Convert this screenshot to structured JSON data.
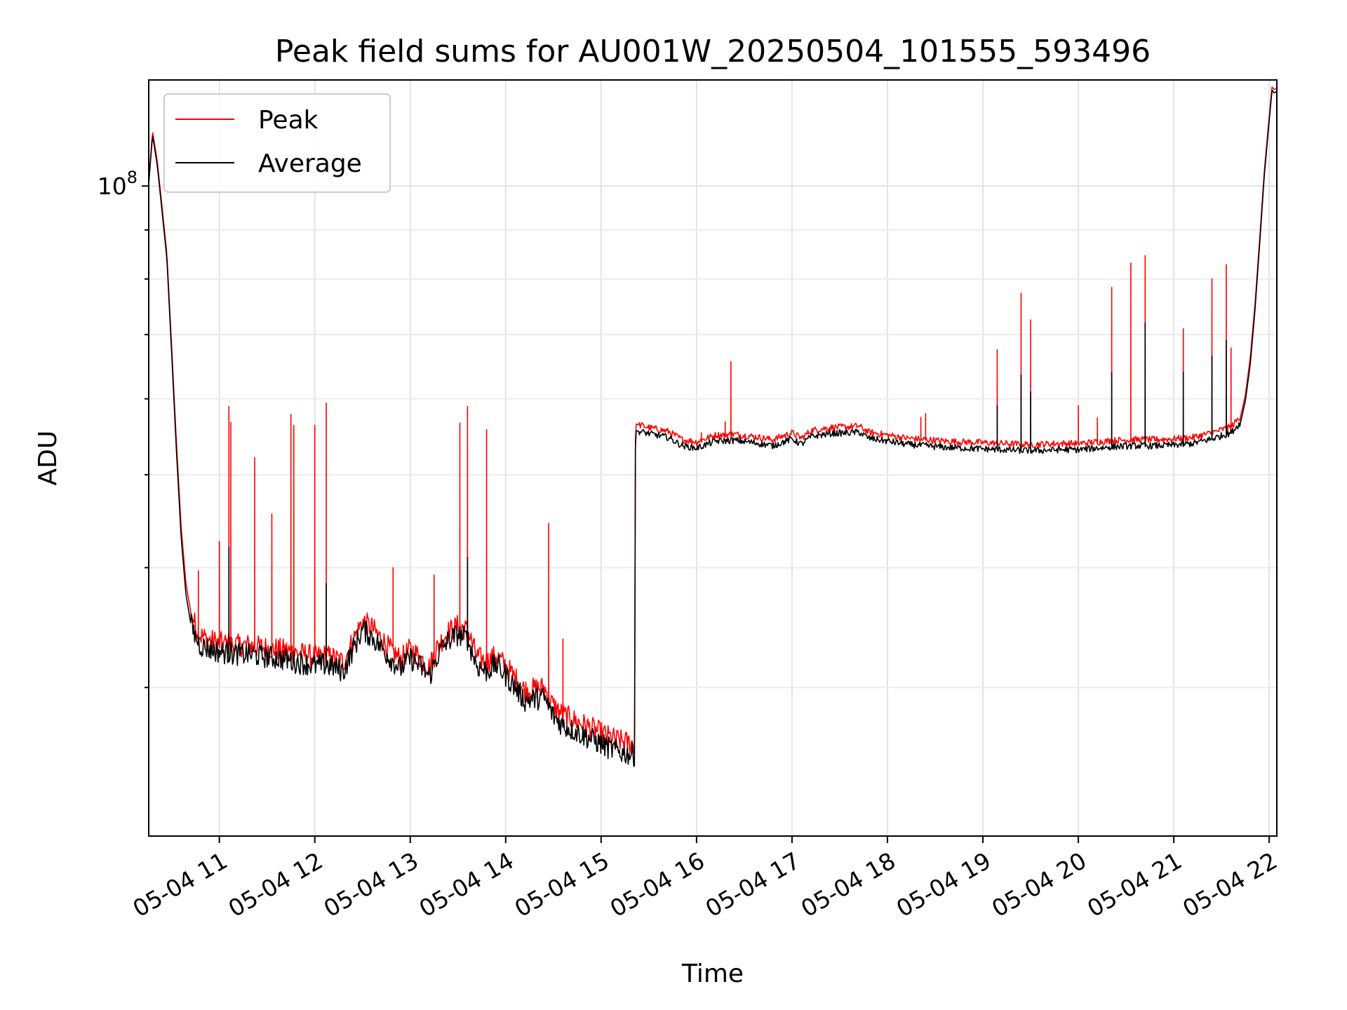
{
  "chart_data": {
    "type": "line",
    "title": "Peak field sums for AU001W_20250504_101555_593496",
    "xlabel": "Time",
    "ylabel": "ADU",
    "x_range_hours": [
      10.26,
      22.08
    ],
    "y_scale": "log",
    "y_range": [
      21000000,
      129000000
    ],
    "x_ticks": [
      {
        "value": 11,
        "label": "05-04 11"
      },
      {
        "value": 12,
        "label": "05-04 12"
      },
      {
        "value": 13,
        "label": "05-04 13"
      },
      {
        "value": 14,
        "label": "05-04 14"
      },
      {
        "value": 15,
        "label": "05-04 15"
      },
      {
        "value": 16,
        "label": "05-04 16"
      },
      {
        "value": 17,
        "label": "05-04 17"
      },
      {
        "value": 18,
        "label": "05-04 18"
      },
      {
        "value": 19,
        "label": "05-04 19"
      },
      {
        "value": 20,
        "label": "05-04 20"
      },
      {
        "value": 21,
        "label": "05-04 21"
      },
      {
        "value": 22,
        "label": "05-04 22"
      }
    ],
    "y_major_ticks": [
      {
        "value": 100000000,
        "base": "10",
        "exp": "8"
      }
    ],
    "y_minor_ticks": [
      30000000,
      40000000,
      50000000,
      60000000,
      70000000,
      80000000,
      90000000
    ],
    "grid": true,
    "legend_position": "top-left",
    "series": [
      {
        "name": "Peak",
        "color": "#ff0000",
        "points": [
          [
            10.26,
            101000000
          ],
          [
            10.3,
            114000000
          ],
          [
            10.35,
            106000000
          ],
          [
            10.4,
            95000000
          ],
          [
            10.45,
            85000000
          ],
          [
            10.5,
            68000000
          ],
          [
            10.55,
            54000000
          ],
          [
            10.6,
            44000000
          ],
          [
            10.65,
            38500000
          ],
          [
            10.7,
            36000000
          ],
          [
            10.75,
            34800000
          ],
          [
            10.8,
            34000000
          ],
          [
            10.9,
            33600000
          ],
          [
            11.0,
            33400000
          ],
          [
            11.1,
            33300000
          ],
          [
            11.2,
            33200000
          ],
          [
            11.3,
            33200000
          ],
          [
            11.4,
            33100000
          ],
          [
            11.5,
            33000000
          ],
          [
            11.6,
            32900000
          ],
          [
            11.7,
            32800000
          ],
          [
            11.8,
            32600000
          ],
          [
            11.9,
            32500000
          ],
          [
            12.0,
            32300000
          ],
          [
            12.1,
            32400000
          ],
          [
            12.2,
            32200000
          ],
          [
            12.3,
            31900000
          ],
          [
            12.4,
            33600000
          ],
          [
            12.5,
            35200000
          ],
          [
            12.6,
            34600000
          ],
          [
            12.7,
            33700000
          ],
          [
            12.8,
            32800000
          ],
          [
            12.9,
            32100000
          ],
          [
            13.0,
            32900000
          ],
          [
            13.1,
            32300000
          ],
          [
            13.2,
            31500000
          ],
          [
            13.3,
            33300000
          ],
          [
            13.4,
            34300000
          ],
          [
            13.5,
            34800000
          ],
          [
            13.6,
            34400000
          ],
          [
            13.7,
            32300000
          ],
          [
            13.8,
            31900000
          ],
          [
            13.9,
            32400000
          ],
          [
            14.0,
            31600000
          ],
          [
            14.1,
            30700000
          ],
          [
            14.2,
            29800000
          ],
          [
            14.3,
            29900000
          ],
          [
            14.4,
            30000000
          ],
          [
            14.5,
            28700000
          ],
          [
            14.6,
            28100000
          ],
          [
            14.7,
            27800000
          ],
          [
            14.8,
            27500000
          ],
          [
            14.9,
            27200000
          ],
          [
            15.0,
            26900000
          ],
          [
            15.1,
            26600000
          ],
          [
            15.2,
            26400000
          ],
          [
            15.35,
            26200000
          ],
          [
            15.36,
            56500000
          ],
          [
            15.5,
            56000000
          ],
          [
            15.7,
            55500000
          ],
          [
            15.85,
            54400000
          ],
          [
            16.0,
            54100000
          ],
          [
            16.2,
            55000000
          ],
          [
            16.4,
            55100000
          ],
          [
            16.6,
            54800000
          ],
          [
            16.8,
            54400000
          ],
          [
            17.0,
            55300000
          ],
          [
            17.1,
            54600000
          ],
          [
            17.2,
            55600000
          ],
          [
            17.4,
            56000000
          ],
          [
            17.6,
            56100000
          ],
          [
            17.7,
            56200000
          ],
          [
            17.8,
            55400000
          ],
          [
            18.0,
            55000000
          ],
          [
            18.2,
            54600000
          ],
          [
            18.4,
            54400000
          ],
          [
            18.6,
            54200000
          ],
          [
            18.8,
            54100000
          ],
          [
            19.0,
            54000000
          ],
          [
            19.2,
            53900000
          ],
          [
            19.4,
            53800000
          ],
          [
            19.6,
            53800000
          ],
          [
            19.8,
            53900000
          ],
          [
            20.0,
            53900000
          ],
          [
            20.2,
            54100000
          ],
          [
            20.4,
            54300000
          ],
          [
            20.6,
            54400000
          ],
          [
            20.8,
            54400000
          ],
          [
            21.0,
            54500000
          ],
          [
            21.2,
            54700000
          ],
          [
            21.4,
            55300000
          ],
          [
            21.6,
            56100000
          ],
          [
            21.7,
            57500000
          ],
          [
            21.75,
            60500000
          ],
          [
            21.8,
            66000000
          ],
          [
            21.85,
            75000000
          ],
          [
            21.9,
            88000000
          ],
          [
            21.95,
            104000000
          ],
          [
            22.0,
            118000000
          ],
          [
            22.03,
            127000000
          ],
          [
            22.05,
            126000000
          ],
          [
            22.08,
            126500000
          ]
        ],
        "spikes": [
          [
            10.78,
            39700000
          ],
          [
            11.0,
            42600000
          ],
          [
            11.1,
            58900000
          ],
          [
            11.12,
            56700000
          ],
          [
            11.37,
            52100000
          ],
          [
            11.55,
            45500000
          ],
          [
            11.75,
            57800000
          ],
          [
            11.78,
            56300000
          ],
          [
            12.0,
            56300000
          ],
          [
            12.12,
            59400000
          ],
          [
            12.82,
            40000000
          ],
          [
            13.25,
            39300000
          ],
          [
            13.52,
            56600000
          ],
          [
            13.6,
            58900000
          ],
          [
            13.8,
            55700000
          ],
          [
            14.45,
            44500000
          ],
          [
            14.6,
            33700000
          ],
          [
            16.05,
            55300000
          ],
          [
            16.3,
            56800000
          ],
          [
            16.36,
            65600000
          ],
          [
            18.35,
            57400000
          ],
          [
            18.4,
            57900000
          ],
          [
            19.15,
            67500000
          ],
          [
            19.4,
            77300000
          ],
          [
            19.5,
            72500000
          ],
          [
            20.0,
            59000000
          ],
          [
            20.2,
            57300000
          ],
          [
            20.35,
            78400000
          ],
          [
            20.55,
            83100000
          ],
          [
            20.7,
            84600000
          ],
          [
            20.8,
            54300000
          ],
          [
            21.1,
            71000000
          ],
          [
            21.4,
            80000000
          ],
          [
            21.55,
            82800000
          ],
          [
            21.6,
            67800000
          ]
        ]
      },
      {
        "name": "Average",
        "color": "#000000",
        "points": [
          [
            10.26,
            100500000
          ],
          [
            10.3,
            113000000
          ],
          [
            10.35,
            105000000
          ],
          [
            10.4,
            94000000
          ],
          [
            10.45,
            84000000
          ],
          [
            10.5,
            67000000
          ],
          [
            10.55,
            53000000
          ],
          [
            10.6,
            43000000
          ],
          [
            10.65,
            37500000
          ],
          [
            10.7,
            35000000
          ],
          [
            10.75,
            33900000
          ],
          [
            10.8,
            33200000
          ],
          [
            10.9,
            32900000
          ],
          [
            11.0,
            32700000
          ],
          [
            11.1,
            32600000
          ],
          [
            11.2,
            32500000
          ],
          [
            11.3,
            32500000
          ],
          [
            11.4,
            32400000
          ],
          [
            11.5,
            32300000
          ],
          [
            11.6,
            32200000
          ],
          [
            11.7,
            32100000
          ],
          [
            11.8,
            31900000
          ],
          [
            11.9,
            31800000
          ],
          [
            12.0,
            31600000
          ],
          [
            12.1,
            31700000
          ],
          [
            12.2,
            31500000
          ],
          [
            12.3,
            31200000
          ],
          [
            12.4,
            32900000
          ],
          [
            12.5,
            34500000
          ],
          [
            12.6,
            33900000
          ],
          [
            12.7,
            33000000
          ],
          [
            12.8,
            32100000
          ],
          [
            12.9,
            31400000
          ],
          [
            13.0,
            32200000
          ],
          [
            13.1,
            31600000
          ],
          [
            13.2,
            30800000
          ],
          [
            13.3,
            32600000
          ],
          [
            13.4,
            33600000
          ],
          [
            13.5,
            34100000
          ],
          [
            13.6,
            33700000
          ],
          [
            13.7,
            31600000
          ],
          [
            13.8,
            31200000
          ],
          [
            13.9,
            31700000
          ],
          [
            14.0,
            30900000
          ],
          [
            14.1,
            30000000
          ],
          [
            14.2,
            29100000
          ],
          [
            14.3,
            29200000
          ],
          [
            14.4,
            29300000
          ],
          [
            14.5,
            28000000
          ],
          [
            14.6,
            27400000
          ],
          [
            14.7,
            27100000
          ],
          [
            14.8,
            26800000
          ],
          [
            14.9,
            26500000
          ],
          [
            15.0,
            26200000
          ],
          [
            15.1,
            25900000
          ],
          [
            15.2,
            25700000
          ],
          [
            15.35,
            25500000
          ],
          [
            15.36,
            55600000
          ],
          [
            15.5,
            55200000
          ],
          [
            15.7,
            54700000
          ],
          [
            15.85,
            53600000
          ],
          [
            16.0,
            53300000
          ],
          [
            16.2,
            54200000
          ],
          [
            16.4,
            54300000
          ],
          [
            16.6,
            54000000
          ],
          [
            16.8,
            53600000
          ],
          [
            17.0,
            54500000
          ],
          [
            17.1,
            53800000
          ],
          [
            17.2,
            54800000
          ],
          [
            17.4,
            55200000
          ],
          [
            17.6,
            55300000
          ],
          [
            17.7,
            55400000
          ],
          [
            17.8,
            54600000
          ],
          [
            18.0,
            54200000
          ],
          [
            18.2,
            53800000
          ],
          [
            18.4,
            53600000
          ],
          [
            18.6,
            53400000
          ],
          [
            18.8,
            53300000
          ],
          [
            19.0,
            53200000
          ],
          [
            19.2,
            53100000
          ],
          [
            19.4,
            53000000
          ],
          [
            19.6,
            53000000
          ],
          [
            19.8,
            53100000
          ],
          [
            20.0,
            53100000
          ],
          [
            20.2,
            53300000
          ],
          [
            20.4,
            53500000
          ],
          [
            20.6,
            53600000
          ],
          [
            20.8,
            53600000
          ],
          [
            21.0,
            53700000
          ],
          [
            21.2,
            53900000
          ],
          [
            21.4,
            54500000
          ],
          [
            21.6,
            55300000
          ],
          [
            21.7,
            56700000
          ],
          [
            21.75,
            59700000
          ],
          [
            21.8,
            65000000
          ],
          [
            21.85,
            74000000
          ],
          [
            21.9,
            87000000
          ],
          [
            21.95,
            103000000
          ],
          [
            22.0,
            117000000
          ],
          [
            22.03,
            126000000
          ],
          [
            22.05,
            125000000
          ],
          [
            22.08,
            125500000
          ]
        ],
        "spikes": [
          [
            11.1,
            42000000
          ],
          [
            12.12,
            38500000
          ],
          [
            13.6,
            41000000
          ],
          [
            19.15,
            59000000
          ],
          [
            19.4,
            63500000
          ],
          [
            19.5,
            61000000
          ],
          [
            20.35,
            64000000
          ],
          [
            20.7,
            72000000
          ],
          [
            21.1,
            64000000
          ],
          [
            21.4,
            66500000
          ],
          [
            21.55,
            69000000
          ]
        ]
      }
    ]
  }
}
